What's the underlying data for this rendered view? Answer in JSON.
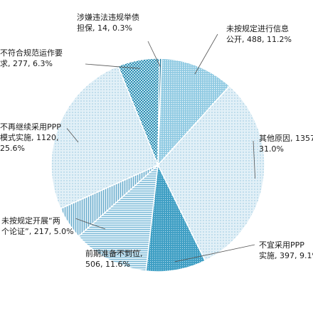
{
  "chart_data": {
    "type": "pie",
    "title": "",
    "slices": [
      {
        "line1": "未按规定进行信息",
        "line2": "公开, 488, 11.2%",
        "value": 488,
        "percent": 11.2,
        "color": "#6db8d6",
        "pattern": "dots-dense"
      },
      {
        "line1": "其他原因, 1357,",
        "line2": "31.0%",
        "value": 1357,
        "percent": 31.0,
        "color": "#d8ecf6",
        "pattern": "dots-light"
      },
      {
        "line1": "不宜采用PPP",
        "line2": "实施, 397, 9.1%",
        "value": 397,
        "percent": 9.1,
        "color": "#4aa4c6",
        "pattern": "dots-dark"
      },
      {
        "line1": "前期准备不到位,",
        "line2": "506, 11.6%",
        "value": 506,
        "percent": 11.6,
        "color": "#cfe7f3",
        "pattern": "hlines"
      },
      {
        "line1": "未按规定开展“两",
        "line2": "个论证”, 217, 5.0%",
        "value": 217,
        "percent": 5.0,
        "color": "#b5d9ea",
        "pattern": "vlines"
      },
      {
        "line1": "不再继续采用PPP",
        "line2": "模式实施, 1120,",
        "line3": "25.6%",
        "value": 1120,
        "percent": 25.6,
        "color": "#e3f1f8",
        "pattern": "dots-light"
      },
      {
        "line1": "不符合规范运作要",
        "line2": "求, 277, 6.3%",
        "value": 277,
        "percent": 6.3,
        "color": "#2c8fb2",
        "pattern": "checker"
      },
      {
        "line1": "涉嫌违法违规举债",
        "line2": "担保, 14, 0.3%",
        "value": 14,
        "percent": 0.3,
        "color": "#1f7aa0",
        "pattern": "solid"
      }
    ]
  }
}
